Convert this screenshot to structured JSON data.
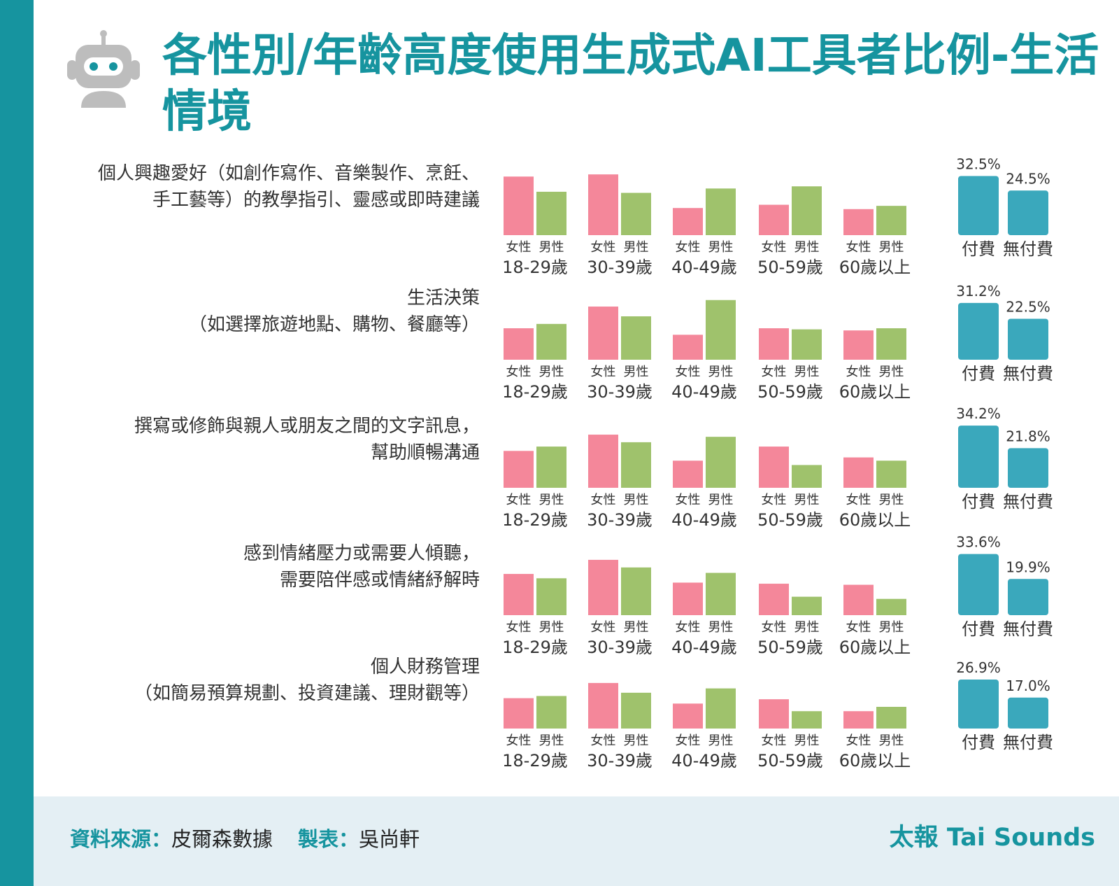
{
  "title": "各性別/年齡高度使用生成式AI工具者比例-生活情境",
  "footer": {
    "source_label": "資料來源：",
    "source_value": "皮爾森數據",
    "maker_label": "製表：",
    "maker_value": "吳尚軒",
    "brand": "太報 Tai Sounds"
  },
  "colors": {
    "teal": "#16949f",
    "female": "#f4879a",
    "male": "#9fc26c",
    "paid": "#3aa8bc",
    "footer_bg": "#e4eff4"
  },
  "icons": [
    "robot-icon"
  ],
  "chart_data": {
    "type": "bar",
    "title": "各性別/年齡高度使用生成式AI工具者比例-生活情境",
    "age_groups": [
      "18-29歲",
      "30-39歲",
      "40-49歲",
      "50-59歲",
      "60歲以上"
    ],
    "gender_labels": [
      "女性",
      "男性"
    ],
    "plan_labels": [
      "付費",
      "無付費"
    ],
    "series_colors": {
      "女性": "#f4879a",
      "男性": "#9fc26c",
      "付費": "#3aa8bc",
      "無付費": "#3aa8bc"
    },
    "axis_scale_note": "gender bars show no printed values; estimated relative heights",
    "rows": [
      {
        "label_lines": [
          "個人興趣愛好（如創作寫作、音樂製作、烹飪、",
          "手工藝等）的教學指引、靈感或即時建議"
        ],
        "female": [
          27.0,
          28.0,
          12.5,
          14.0,
          12.0
        ],
        "male": [
          20.0,
          19.5,
          21.5,
          22.5,
          13.5
        ],
        "paid": 32.5,
        "unpaid": 24.5,
        "paid_label": "32.5%",
        "unpaid_label": "24.5%"
      },
      {
        "label_lines": [
          "生活決策",
          "（如選擇旅遊地點、購物、餐廳等）"
        ],
        "female": [
          14.5,
          24.5,
          11.5,
          14.5,
          13.5
        ],
        "male": [
          16.5,
          20.0,
          27.5,
          14.0,
          14.5
        ],
        "paid": 31.2,
        "unpaid": 22.5,
        "paid_label": "31.2%",
        "unpaid_label": "22.5%"
      },
      {
        "label_lines": [
          "撰寫或修飾與親人或朋友之間的文字訊息，",
          "幫助順暢溝通"
        ],
        "female": [
          17.0,
          24.5,
          12.5,
          19.0,
          14.0
        ],
        "male": [
          19.0,
          21.0,
          23.5,
          10.5,
          12.5
        ],
        "paid": 34.2,
        "unpaid": 21.8,
        "paid_label": "34.2%",
        "unpaid_label": "21.8%"
      },
      {
        "label_lines": [
          "感到情緒壓力或需要人傾聽，",
          "需要陪伴感或情緒紓解時"
        ],
        "female": [
          19.0,
          25.5,
          15.0,
          14.5,
          14.0
        ],
        "male": [
          17.0,
          22.0,
          19.5,
          8.5,
          7.5
        ],
        "paid": 33.6,
        "unpaid": 19.9,
        "paid_label": "33.6%",
        "unpaid_label": "19.9%"
      },
      {
        "label_lines": [
          "個人財務管理",
          "（如簡易預算規劃、投資建議、理財觀等）"
        ],
        "female": [
          14.0,
          21.0,
          11.5,
          13.5,
          8.0
        ],
        "male": [
          15.0,
          16.5,
          18.5,
          8.0,
          10.0
        ],
        "paid": 26.9,
        "unpaid": 17.0,
        "paid_label": "26.9%",
        "unpaid_label": "17.0%"
      }
    ]
  }
}
